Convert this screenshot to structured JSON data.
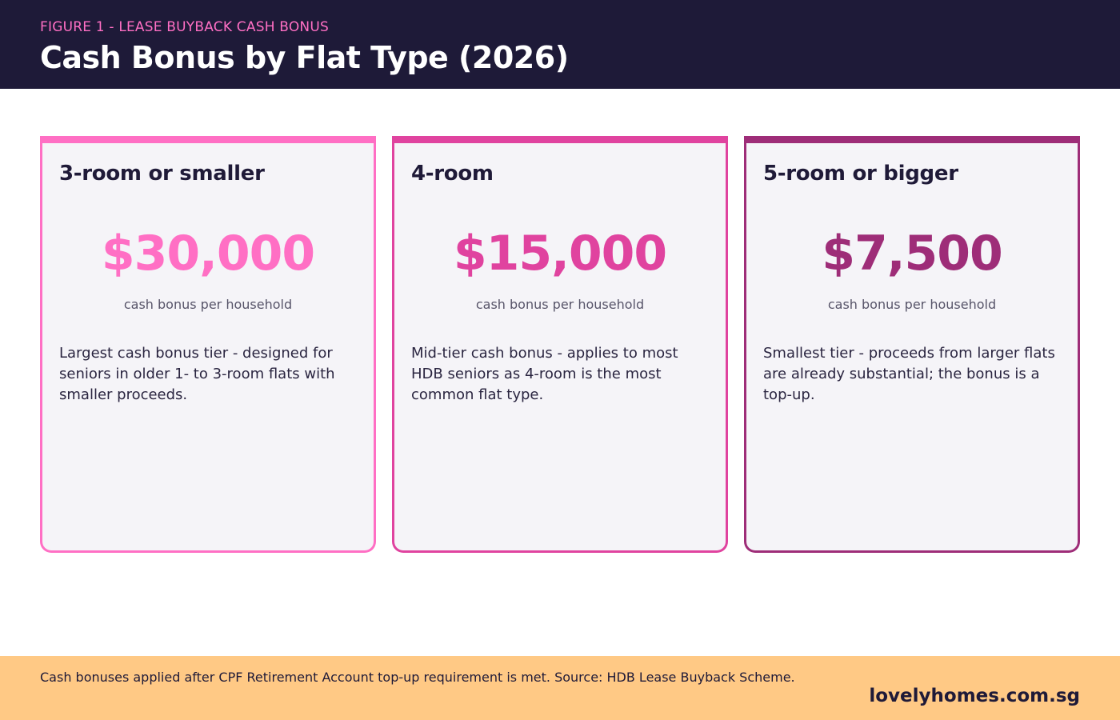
{
  "header": {
    "figure_label": "FIGURE 1 - LEASE BUYBACK CASH BONUS",
    "title": "Cash Bonus by Flat Type (2026)"
  },
  "cards": [
    {
      "title": "3-room or smaller",
      "amount": "$30,000",
      "amount_caption": "cash bonus per household",
      "description": "Largest cash bonus tier - designed for seniors in older 1- to 3-room flats with smaller proceeds.",
      "accent_color": "#ff6fc4"
    },
    {
      "title": "4-room",
      "amount": "$15,000",
      "amount_caption": "cash bonus per household",
      "description": "Mid-tier cash bonus - applies to most HDB seniors as 4-room is the most common flat type.",
      "accent_color": "#e0439f"
    },
    {
      "title": "5-room or bigger",
      "amount": "$7,500",
      "amount_caption": "cash bonus per household",
      "description": "Smallest tier - proceeds from larger flats are already substantial; the bonus is a top-up.",
      "accent_color": "#9e2d78"
    }
  ],
  "footer": {
    "note": "Cash bonuses applied after CPF Retirement Account top-up requirement is met. Source: HDB Lease Buyback Scheme.",
    "brand": "lovelyhomes.com.sg"
  },
  "colors": {
    "header_bg": "#1e1a38",
    "footer_bg": "#ffc985",
    "card_bg": "#f5f4f8"
  }
}
